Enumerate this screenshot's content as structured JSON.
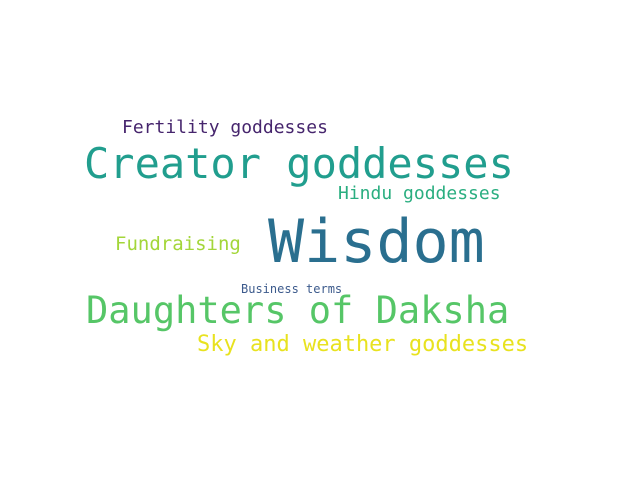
{
  "words": [
    {
      "id": "w-wisdom",
      "text": "Wisdom",
      "color": "#2a6f8f"
    },
    {
      "id": "w-creator",
      "text": "Creator goddesses",
      "color": "#219e8e"
    },
    {
      "id": "w-daksha",
      "text": "Daughters of Daksha",
      "color": "#56c667"
    },
    {
      "id": "w-sky",
      "text": "Sky and weather goddesses",
      "color": "#e8e21f"
    },
    {
      "id": "w-fertility",
      "text": "Fertility goddesses",
      "color": "#46256d"
    },
    {
      "id": "w-hindu",
      "text": "Hindu goddesses",
      "color": "#2aae80"
    },
    {
      "id": "w-fundraising",
      "text": "Fundraising",
      "color": "#a3d639"
    },
    {
      "id": "w-business",
      "text": "Business terms",
      "color": "#3c5a8c"
    }
  ]
}
